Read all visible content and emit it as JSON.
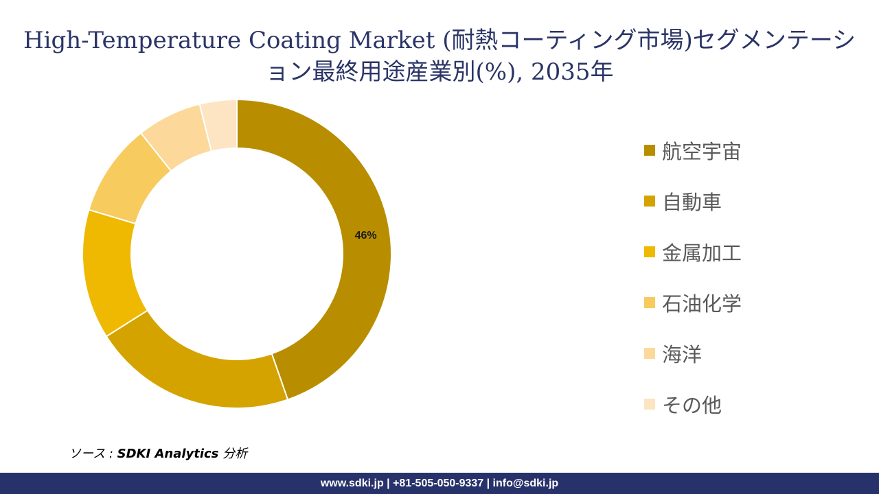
{
  "title": "High-Temperature Coating Market (耐熱コーティング市場)セグメンテーション最終用途産業別(%), 2035年",
  "chart_data": {
    "type": "pie",
    "variant": "donut",
    "categories": [
      "航空宇宙",
      "自動車",
      "金属加工",
      "石油化学",
      "海洋",
      "その他"
    ],
    "values": [
      46,
      22,
      14,
      10,
      7,
      4
    ],
    "colors": [
      "#b88e00",
      "#d4a300",
      "#eeb900",
      "#f7cb5e",
      "#fcd99a",
      "#fde4c3"
    ],
    "data_labels": [
      "46%",
      "",
      "",
      "",
      "",
      ""
    ],
    "legend_position": "right"
  },
  "source": {
    "prefix": "ソース :",
    "name": "SDKI Analytics",
    "suffix": "分析"
  },
  "footer": "www.sdki.jp | +81-505-050-9337 | info@sdki.jp"
}
